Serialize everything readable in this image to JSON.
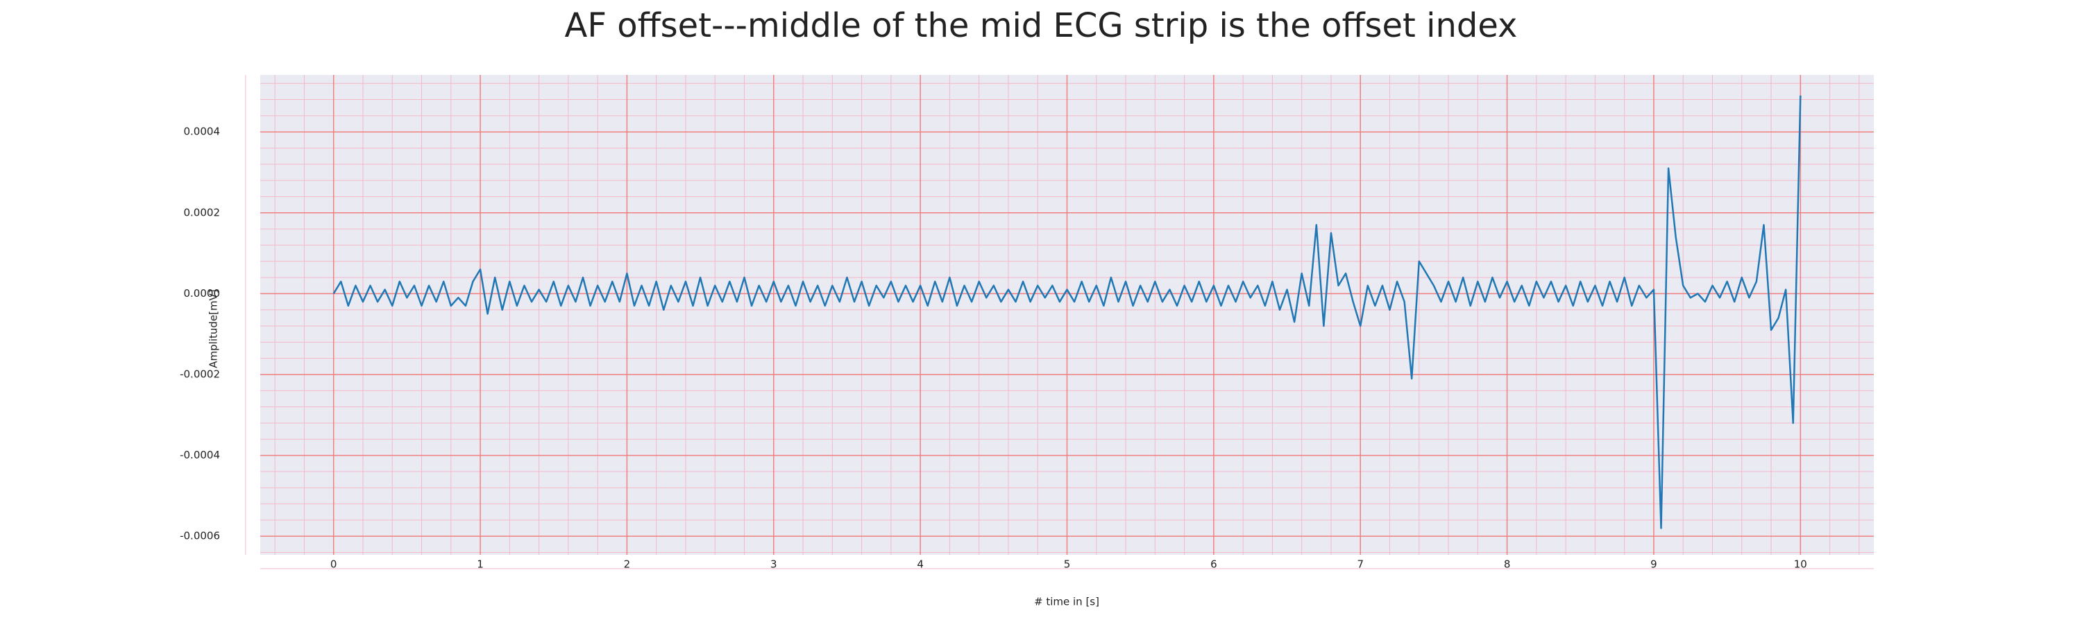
{
  "chart_data": {
    "type": "line",
    "title": "AF offset---middle of the mid ECG strip is the offset index",
    "x_label": "# time in [s]",
    "y_label": "Amplitude[mV]",
    "x": [
      0,
      0.05,
      0.1,
      0.15,
      0.2,
      0.25,
      0.3,
      0.35,
      0.4,
      0.45,
      0.5,
      0.55,
      0.6,
      0.65,
      0.7,
      0.75,
      0.8,
      0.85,
      0.9,
      0.95,
      1,
      1.05,
      1.1,
      1.15,
      1.2,
      1.25,
      1.3,
      1.35,
      1.4,
      1.45,
      1.5,
      1.55,
      1.6,
      1.65,
      1.7,
      1.75,
      1.8,
      1.85,
      1.9,
      1.95,
      2,
      2.05,
      2.1,
      2.15,
      2.2,
      2.25,
      2.3,
      2.35,
      2.4,
      2.45,
      2.5,
      2.55,
      2.6,
      2.65,
      2.7,
      2.75,
      2.8,
      2.85,
      2.9,
      2.95,
      3,
      3.05,
      3.1,
      3.15,
      3.2,
      3.25,
      3.3,
      3.35,
      3.4,
      3.45,
      3.5,
      3.55,
      3.6,
      3.65,
      3.7,
      3.75,
      3.8,
      3.85,
      3.9,
      3.95,
      4,
      4.05,
      4.1,
      4.15,
      4.2,
      4.25,
      4.3,
      4.35,
      4.4,
      4.45,
      4.5,
      4.55,
      4.6,
      4.65,
      4.7,
      4.75,
      4.8,
      4.85,
      4.9,
      4.95,
      5,
      5.05,
      5.1,
      5.15,
      5.2,
      5.25,
      5.3,
      5.35,
      5.4,
      5.45,
      5.5,
      5.55,
      5.6,
      5.65,
      5.7,
      5.75,
      5.8,
      5.85,
      5.9,
      5.95,
      6,
      6.05,
      6.1,
      6.15,
      6.2,
      6.25,
      6.3,
      6.35,
      6.4,
      6.45,
      6.5,
      6.55,
      6.6,
      6.65,
      6.7,
      6.75,
      6.8,
      6.85,
      6.9,
      6.95,
      7,
      7.05,
      7.1,
      7.15,
      7.2,
      7.25,
      7.3,
      7.35,
      7.4,
      7.45,
      7.5,
      7.55,
      7.6,
      7.65,
      7.7,
      7.75,
      7.8,
      7.85,
      7.9,
      7.95,
      8,
      8.05,
      8.1,
      8.15,
      8.2,
      8.25,
      8.3,
      8.35,
      8.4,
      8.45,
      8.5,
      8.55,
      8.6,
      8.65,
      8.7,
      8.75,
      8.8,
      8.85,
      8.9,
      8.95,
      9,
      9.05,
      9.1,
      9.15,
      9.2,
      9.25,
      9.3,
      9.35,
      9.4,
      9.45,
      9.5,
      9.55,
      9.6,
      9.65,
      9.7,
      9.75,
      9.8,
      9.85,
      9.9,
      9.95,
      10
    ],
    "series": [
      {
        "color": "#1f77b4",
        "values": [
          0,
          3e-05,
          -3e-05,
          2e-05,
          -2e-05,
          2e-05,
          -2e-05,
          1e-05,
          -3e-05,
          3e-05,
          -1e-05,
          2e-05,
          -3e-05,
          2e-05,
          -2e-05,
          3e-05,
          -3e-05,
          -1e-05,
          -3e-05,
          3e-05,
          6e-05,
          -5e-05,
          4e-05,
          -4e-05,
          3e-05,
          -3e-05,
          2e-05,
          -2e-05,
          1e-05,
          -2e-05,
          3e-05,
          -3e-05,
          2e-05,
          -2e-05,
          4e-05,
          -3e-05,
          2e-05,
          -2e-05,
          3e-05,
          -2e-05,
          5e-05,
          -3e-05,
          2e-05,
          -3e-05,
          3e-05,
          -4e-05,
          2e-05,
          -2e-05,
          3e-05,
          -3e-05,
          4e-05,
          -3e-05,
          2e-05,
          -2e-05,
          3e-05,
          -2e-05,
          4e-05,
          -3e-05,
          2e-05,
          -2e-05,
          3e-05,
          -2e-05,
          2e-05,
          -3e-05,
          3e-05,
          -2e-05,
          2e-05,
          -3e-05,
          2e-05,
          -2e-05,
          4e-05,
          -2e-05,
          3e-05,
          -3e-05,
          2e-05,
          -1e-05,
          3e-05,
          -2e-05,
          2e-05,
          -2e-05,
          2e-05,
          -3e-05,
          3e-05,
          -2e-05,
          4e-05,
          -3e-05,
          2e-05,
          -2e-05,
          3e-05,
          -1e-05,
          2e-05,
          -2e-05,
          1e-05,
          -2e-05,
          3e-05,
          -2e-05,
          2e-05,
          -1e-05,
          2e-05,
          -2e-05,
          1e-05,
          -2e-05,
          3e-05,
          -2e-05,
          2e-05,
          -3e-05,
          4e-05,
          -2e-05,
          3e-05,
          -3e-05,
          2e-05,
          -2e-05,
          3e-05,
          -2e-05,
          1e-05,
          -3e-05,
          2e-05,
          -2e-05,
          3e-05,
          -2e-05,
          2e-05,
          -3e-05,
          2e-05,
          -2e-05,
          3e-05,
          -1e-05,
          2e-05,
          -3e-05,
          3e-05,
          -4e-05,
          1e-05,
          -7e-05,
          5e-05,
          -3e-05,
          0.00017,
          -8e-05,
          0.00015,
          2e-05,
          5e-05,
          -2e-05,
          -8e-05,
          2e-05,
          -3e-05,
          2e-05,
          -4e-05,
          3e-05,
          -2e-05,
          -0.00021,
          8e-05,
          5e-05,
          2e-05,
          -2e-05,
          3e-05,
          -2e-05,
          4e-05,
          -3e-05,
          3e-05,
          -2e-05,
          4e-05,
          -1e-05,
          3e-05,
          -2e-05,
          2e-05,
          -3e-05,
          3e-05,
          -1e-05,
          3e-05,
          -2e-05,
          2e-05,
          -3e-05,
          3e-05,
          -2e-05,
          2e-05,
          -3e-05,
          3e-05,
          -2e-05,
          4e-05,
          -3e-05,
          2e-05,
          -1e-05,
          1e-05,
          -0.00058,
          0.00031,
          0.00014,
          2e-05,
          -1e-05,
          0,
          -2e-05,
          2e-05,
          -1e-05,
          3e-05,
          -2e-05,
          4e-05,
          -1e-05,
          3e-05,
          0.00017,
          -9e-05,
          -6e-05,
          1e-05,
          -0.00032,
          0.00049
        ]
      }
    ],
    "xlim": [
      -0.5,
      10.5
    ],
    "xticks": [
      0,
      1,
      2,
      3,
      4,
      5,
      6,
      7,
      8,
      9,
      10
    ],
    "ylim": [
      -0.000646,
      0.000541
    ],
    "yticks": [
      -0.0006,
      -0.0004,
      -0.0002,
      {
        "value": 0,
        "label": "0.0000"
      },
      0.0002,
      0.0004
    ],
    "grid": true
  }
}
